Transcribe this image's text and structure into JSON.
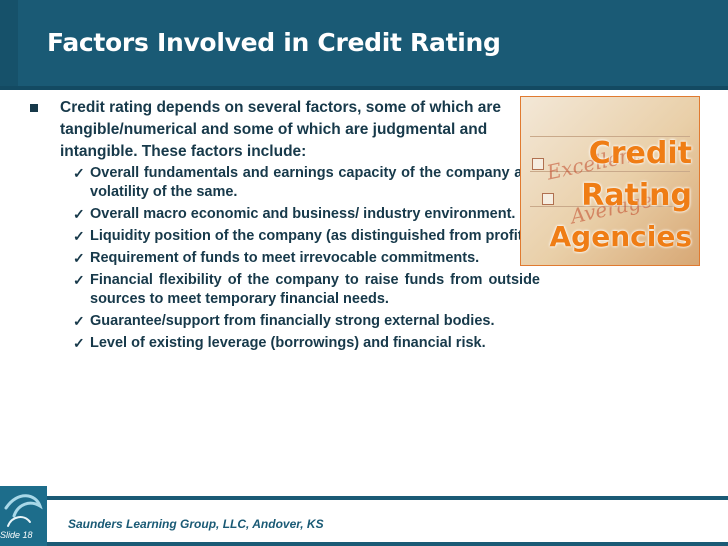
{
  "slide": {
    "title": "Factors Involved in Credit Rating",
    "main_bullet": "Credit rating depends on several factors, some of which are tangible/numerical and some of which are judgmental and intangible. These factors include:",
    "sub_bullets": [
      "Overall fundamentals and earnings capacity of the company and volatility of the same.",
      "Overall macro economic and business/ industry environment.",
      "Liquidity position of the company (as distinguished from profits).",
      "Requirement of funds to meet irrevocable commitments.",
      "Financial flexibility of the company to raise funds from outside sources to meet temporary financial needs.",
      "Guarantee/support from financially strong external bodies.",
      "Level of existing leverage (borrowings) and financial risk."
    ],
    "image_words": [
      "Credit",
      "Rating",
      "Agencies"
    ],
    "image_script_words": [
      "Excellent",
      "Average"
    ],
    "footer": "Saunders Learning Group, LLC, Andover, KS",
    "slide_number": "Slide 18"
  },
  "colors": {
    "title_bar": "#1a5a75",
    "body_text": "#17394a",
    "image_word": "#ef7d15"
  },
  "icons": {
    "main_bullet": "square-bullet-icon",
    "sub_bullet": "checkmark-icon",
    "logo": "logo-icon"
  }
}
